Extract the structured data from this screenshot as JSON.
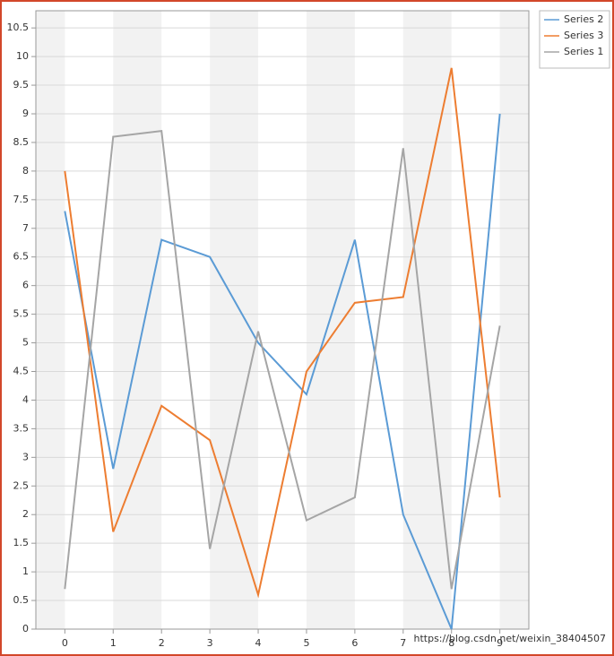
{
  "chart_data": {
    "type": "line",
    "x": [
      0,
      1,
      2,
      3,
      4,
      5,
      6,
      7,
      8,
      9
    ],
    "xlim": [
      -0.6,
      9.6
    ],
    "xticks": [
      0,
      1,
      2,
      3,
      4,
      5,
      6,
      7,
      8,
      9
    ],
    "ylim": [
      0,
      10.8
    ],
    "yticks": [
      0,
      0.5,
      1,
      1.5,
      2,
      2.5,
      3,
      3.5,
      4,
      4.5,
      5,
      5.5,
      6,
      6.5,
      7,
      7.5,
      8,
      8.5,
      9,
      9.5,
      10,
      10.5
    ],
    "grid": true,
    "legend": "right",
    "series": [
      {
        "name": "Series 2",
        "color": "#5b9bd5",
        "values": [
          7.3,
          2.8,
          6.8,
          6.5,
          5.0,
          4.1,
          6.8,
          2.0,
          0,
          9.0
        ]
      },
      {
        "name": "Series 3",
        "color": "#ed7d31",
        "values": [
          8.0,
          1.7,
          3.9,
          3.3,
          0.6,
          4.5,
          5.7,
          5.8,
          9.8,
          2.3
        ]
      },
      {
        "name": "Series 1",
        "color": "#a5a5a5",
        "values": [
          0.7,
          8.6,
          8.7,
          1.4,
          5.2,
          1.9,
          2.3,
          8.4,
          0.7,
          5.3
        ]
      }
    ],
    "watermark": "https://blog.csdn.net/weixin_38404507"
  }
}
